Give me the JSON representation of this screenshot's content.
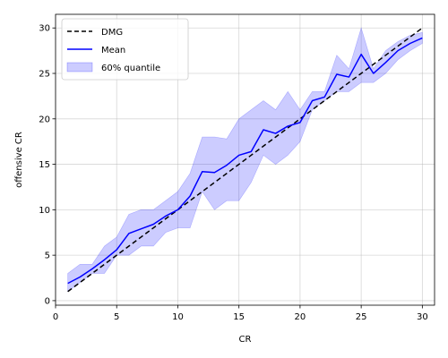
{
  "chart_data": {
    "type": "line",
    "xlabel": "CR",
    "ylabel": "offensive CR",
    "xlim": [
      0,
      31
    ],
    "ylim": [
      -0.5,
      31.5
    ],
    "xticks": [
      0,
      5,
      10,
      15,
      20,
      25,
      30
    ],
    "yticks": [
      0,
      5,
      10,
      15,
      20,
      25,
      30
    ],
    "grid": true,
    "legend_position": "upper-left",
    "x": [
      1,
      2,
      3,
      4,
      5,
      6,
      7,
      8,
      9,
      10,
      11,
      12,
      13,
      14,
      15,
      16,
      17,
      18,
      19,
      20,
      21,
      22,
      23,
      24,
      25,
      26,
      27,
      28,
      29,
      30
    ],
    "series": [
      {
        "name": "DMG",
        "style": "dashed",
        "color": "#000000",
        "values": [
          1,
          2,
          3,
          4,
          5,
          6,
          7,
          8,
          9,
          10,
          11,
          12,
          13,
          14,
          15,
          16,
          17,
          18,
          19,
          20,
          21,
          22,
          23,
          24,
          25,
          26,
          27,
          28,
          29,
          30
        ]
      },
      {
        "name": "Mean",
        "style": "solid",
        "color": "#0000ff",
        "values": [
          1.9,
          2.6,
          3.5,
          4.5,
          5.6,
          7.4,
          7.9,
          8.4,
          9.3,
          10.0,
          11.5,
          14.2,
          14.1,
          14.9,
          16.0,
          16.4,
          18.8,
          18.4,
          19.2,
          19.6,
          22.0,
          22.4,
          24.9,
          24.6,
          27.1,
          25.0,
          26.2,
          27.5,
          28.3,
          28.9
        ]
      }
    ],
    "band": {
      "name": "60% quantile",
      "color": "#0000ff",
      "opacity": 0.2,
      "lower": [
        1,
        2,
        3,
        3,
        5,
        5,
        6,
        6,
        7.5,
        8,
        8,
        12,
        10,
        11,
        11,
        13,
        16,
        15,
        16,
        17.5,
        21,
        22,
        23,
        23,
        24,
        24,
        25,
        26.5,
        27.5,
        28.3
      ],
      "upper": [
        3,
        4,
        4,
        6,
        7,
        9.5,
        10,
        10,
        11,
        12,
        14,
        18,
        18,
        17.8,
        20,
        21,
        22,
        21,
        23,
        21,
        23,
        23,
        27,
        25.5,
        30,
        25.5,
        27.5,
        28.5,
        29.2,
        29.5
      ]
    }
  }
}
